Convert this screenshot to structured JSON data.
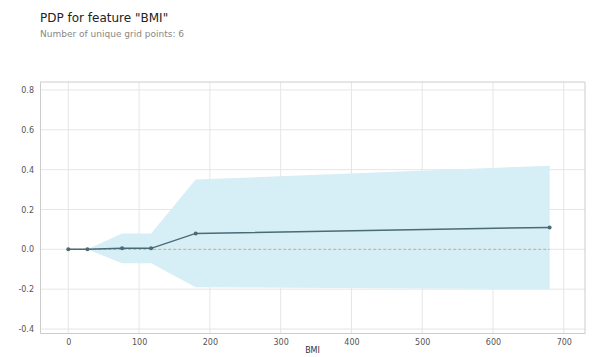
{
  "chart_data": {
    "type": "line",
    "title": "PDP for feature \"BMI\"",
    "subtitle": "Number of unique grid points: 6",
    "x_label": "BMI",
    "x": [
      0,
      27,
      76,
      117,
      180,
      680
    ],
    "series": [
      {
        "type": "line",
        "color": "#4a6a76",
        "marker": "circle",
        "line_style": "solid",
        "values": [
          0,
          0,
          0.005,
          0.005,
          0.08,
          0.11
        ],
        "lower": [
          0,
          0,
          -0.07,
          -0.07,
          -0.19,
          -0.2
        ],
        "upper": [
          0,
          0,
          0.08,
          0.08,
          0.35,
          0.42
        ],
        "band_color": "#d6eef6"
      },
      {
        "type": "line",
        "color": "#f0a050",
        "line_style": "dashed",
        "values": [
          0,
          0,
          0,
          0,
          0,
          0
        ]
      }
    ],
    "xlim": [
      -40,
      730
    ],
    "ylim": [
      -0.42,
      0.84
    ],
    "xticks": [
      0,
      100,
      200,
      300,
      400,
      500,
      600,
      700
    ],
    "yticks": [
      -0.4,
      -0.2,
      {
        "value": 0,
        "label": "0.0"
      },
      0.2,
      0.4,
      0.6,
      0.8
    ],
    "grid": true
  }
}
